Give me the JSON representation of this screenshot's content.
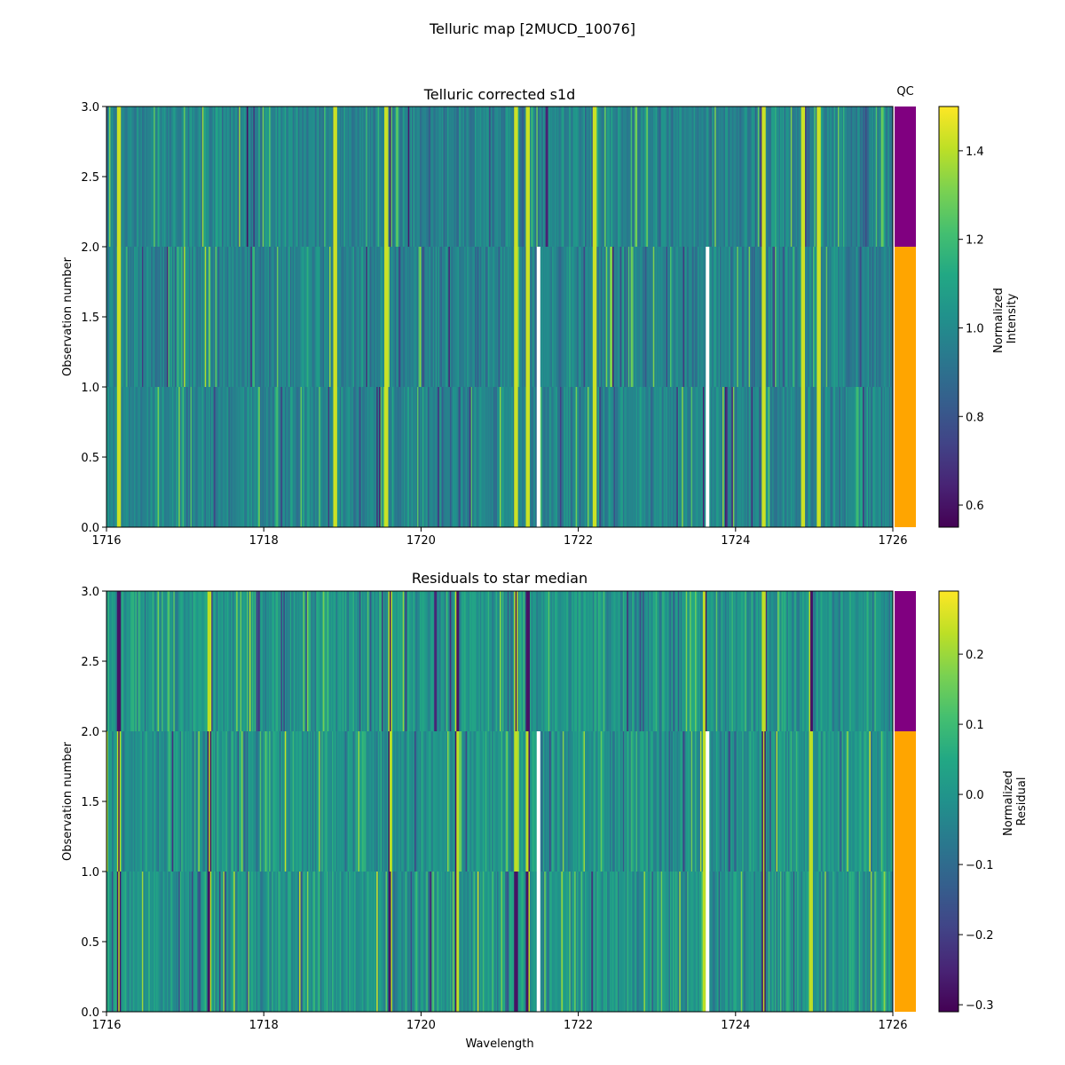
{
  "suptitle": "Telluric map [2MUCD_10076]",
  "chart_data": [
    {
      "type": "heatmap",
      "title": "Telluric corrected s1d",
      "xlabel": "",
      "ylabel": "Observation number",
      "xlim": [
        1716,
        1726
      ],
      "ylim": [
        0.0,
        3.0
      ],
      "x_ticks": [
        "1716",
        "1718",
        "1720",
        "1722",
        "1724",
        "1726"
      ],
      "y_ticks": [
        "0.0",
        "0.5",
        "1.0",
        "1.5",
        "2.0",
        "2.5",
        "3.0"
      ],
      "rows": 3,
      "colormap": "viridis",
      "colorbar_label": [
        "Normalized",
        "Intensity"
      ],
      "clim": [
        0.55,
        1.5
      ],
      "colorbar_ticks": [
        "0.6",
        "0.8",
        "1.0",
        "1.2",
        "1.4"
      ],
      "nan_columns_x": [
        1721.48,
        1723.63
      ],
      "bright_lines_x": [
        1716.15,
        1718.9,
        1719.55,
        1721.2,
        1721.35,
        1722.2,
        1724.35,
        1724.85,
        1725.05
      ],
      "qc_label": "QC",
      "qc_colors": [
        "#ffa500",
        "#ffa500",
        "#800080"
      ]
    },
    {
      "type": "heatmap",
      "title": "Residuals to star median",
      "xlabel": "Wavelength",
      "ylabel": "Observation number",
      "xlim": [
        1716,
        1726
      ],
      "ylim": [
        0.0,
        3.0
      ],
      "x_ticks": [
        "1716",
        "1718",
        "1720",
        "1722",
        "1724",
        "1726"
      ],
      "y_ticks": [
        "0.0",
        "0.5",
        "1.0",
        "1.5",
        "2.0",
        "2.5",
        "3.0"
      ],
      "rows": 3,
      "colormap": "viridis",
      "colorbar_label": [
        "Normalized",
        "Residual"
      ],
      "clim": [
        -0.31,
        0.29
      ],
      "colorbar_ticks": [
        "−0.3",
        "−0.2",
        "−0.1",
        "0.0",
        "0.1",
        "0.2"
      ],
      "nan_columns_x": [
        1721.48,
        1723.63
      ],
      "dark_lines_x": [
        1716.15,
        1717.3,
        1719.6,
        1720.45,
        1721.2,
        1721.35,
        1723.6,
        1724.35,
        1724.95
      ],
      "qc_colors": [
        "#ffa500",
        "#ffa500",
        "#800080"
      ]
    }
  ]
}
